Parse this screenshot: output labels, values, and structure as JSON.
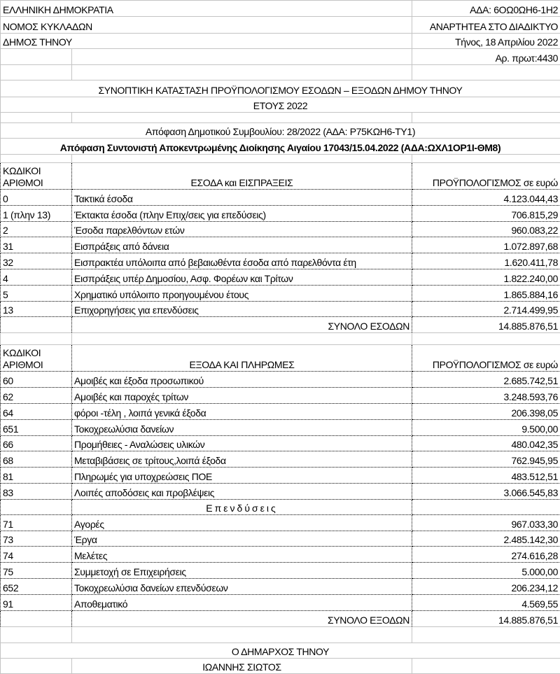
{
  "header": {
    "left": [
      "ΕΛΛΗΝΙΚΗ ΔΗΜΟΚΡΑΤΙΑ",
      "ΝΟΜΟΣ ΚΥΚΛΑΔΩΝ",
      "ΔΗΜΟΣ ΤΗΝΟΥ"
    ],
    "right": [
      "ΑΔΑ: 6ΟΩ0ΩΗ6-1Η2",
      "ΑΝΑΡΤΗΤΕΑ ΣΤΟ ΔΙΑΔΙΚΤΥΟ",
      "Τήνος, 18 Απριλίου 2022",
      "Αρ. πρωτ:4430"
    ]
  },
  "title": "ΣΥΝΟΠΤΙΚΗ ΚΑΤΑΣΤΑΣΗ ΠΡΟΫΠΟΛΟΓΙΣΜΟΥ ΕΣΟΔΩΝ – ΕΞΟΔΩΝ ΔΗΜΟΥ ΤΗΝΟΥ",
  "year": "ΕΤΟΥΣ 2022",
  "decision_council": "Απόφαση Δημοτικού Συμβουλίου: 28/2022 (ΑΔΑ: Ρ75ΚΩΗ6-ΤΥ1)",
  "decision_coordinator": "Απόφαση Συντονιστή Αποκεντρωμένης Διοίκησης Αιγαίου 17043/15.04.2022 (ΑΔΑ:ΩΧΛ1ΟΡ1Ι-ΘΜ8)",
  "income": {
    "col_code": [
      "ΚΩΔΙΚΟΙ",
      "ΑΡΙΘΜΟΙ"
    ],
    "col_desc": "ΕΣΟΔΑ και ΕΙΣΠΡΑΞΕΙΣ",
    "col_amount": "ΠΡΟΫΠΟΛΟΓΙΣΜΟΣ σε ευρώ",
    "rows": [
      {
        "code": "0",
        "desc": "Τακτικά έσοδα",
        "amount": "4.123.044,43"
      },
      {
        "code": "1 (πλην 13)",
        "desc": "Έκτακτα έσοδα (πλην Επιχ/σεις για επεδύσεις)",
        "amount": "706.815,29"
      },
      {
        "code": "2",
        "desc": "Έσοδα παρελθόντων ετών",
        "amount": "960.083,22"
      },
      {
        "code": "31",
        "desc": "Εισπράξεις από δάνεια",
        "amount": "1.072.897,68"
      },
      {
        "code": "32",
        "desc": "Εισπρακτέα υπόλοιπα από βεβαιωθέντα έσοδα από παρελθόντα έτη",
        "amount": "1.620.411,78"
      },
      {
        "code": "4",
        "desc": "Εισπράξεις υπέρ Δημοσίου, Ασφ. Φορέων και Τρίτων",
        "amount": "1.822.240,00"
      },
      {
        "code": "5",
        "desc": "Χρηματικό υπόλοιπο προηγουμένου έτους",
        "amount": "1.865.884,16"
      },
      {
        "code": "13",
        "desc": "Επιχορηγήσεις για επενδύσεις",
        "amount": "2.714.499,95"
      }
    ],
    "total_label": "ΣΥΝΟΛΟ ΕΣΟΔΩΝ",
    "total": "14.885.876,51"
  },
  "expenses": {
    "col_code": [
      "ΚΩΔΙΚΟΙ",
      "ΑΡΙΘΜΟΙ"
    ],
    "col_desc": "ΕΞΟΔΑ ΚΑΙ ΠΛΗΡΩΜΕΣ",
    "col_amount": "ΠΡΟΫΠΟΛΟΓΙΣΜΟΣ σε ευρώ",
    "rows": [
      {
        "code": "60",
        "desc": "Αμοιβές και έξοδα προσωπικού",
        "amount": "2.685.742,51"
      },
      {
        "code": "62",
        "desc": "Αμοιβές και παροχές τρίτων",
        "amount": "3.248.593,76"
      },
      {
        "code": "64",
        "desc": "φόροι -τέλη , λοιπά γενικά έξοδα",
        "amount": "206.398,05"
      },
      {
        "code": "651",
        "desc": "Τοκοχρεωλύσια δανείων",
        "amount": "9.500,00"
      },
      {
        "code": "66",
        "desc": "Προμήθειες - Αναλώσεις υλικών",
        "amount": "480.042,35"
      },
      {
        "code": "68",
        "desc": "Μεταβιβάσεις σε τρίτους,λοιπά έξοδα",
        "amount": "762.945,95"
      },
      {
        "code": "81",
        "desc": "Πληρωμές για υποχρεώσεις ΠΟΕ",
        "amount": "483.512,51"
      },
      {
        "code": "83",
        "desc": "Λοιπές αποδόσεις και προβλέψεις",
        "amount": "3.066.545,83"
      }
    ],
    "investments_label": "Επενδύσεις",
    "investments": [
      {
        "code": "71",
        "desc": "Αγορές",
        "amount": "967.033,30"
      },
      {
        "code": "73",
        "desc": "Έργα",
        "amount": "2.485.142,30"
      },
      {
        "code": "74",
        "desc": "Μελέτες",
        "amount": "274.616,28"
      },
      {
        "code": "75",
        "desc": "Συμμετοχή σε Επιχειρήσεις",
        "amount": "5.000,00"
      },
      {
        "code": "652",
        "desc": "Τοκοχρεωλύσια δανείων  επενδύσεων",
        "amount": "206.234,12"
      },
      {
        "code": "91",
        "desc": "Αποθεματικό",
        "amount": "4.569,55"
      }
    ],
    "total_label": "ΣΥΝΟΛΟ ΕΞΟΔΩΝ",
    "total": "14.885.876,51"
  },
  "signature": {
    "role": "Ο ΔΗΜΑΡΧΟΣ ΤΗΝΟΥ",
    "name": "ΙΩΑΝΝΗΣ ΣΙΩΤΟΣ"
  }
}
